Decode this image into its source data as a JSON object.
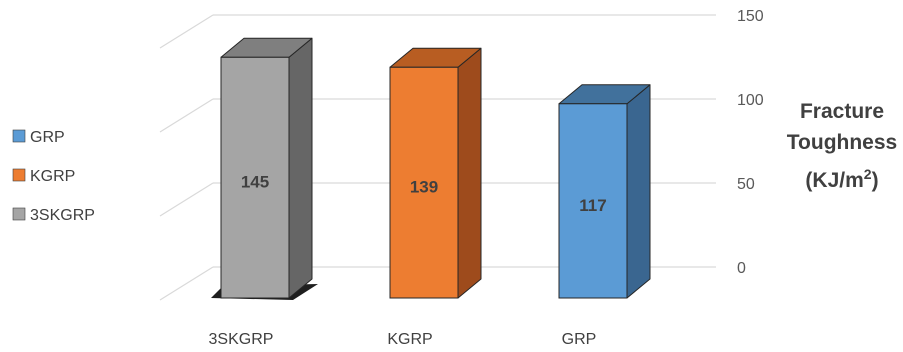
{
  "chart_data": {
    "type": "bar",
    "categories": [
      "3SKGRP",
      "KGRP",
      "GRP"
    ],
    "values": [
      145,
      139,
      117
    ],
    "value_labels": [
      "145",
      "139",
      "117"
    ],
    "ylabel_lines": [
      "Fracture",
      "Toughness",
      "(KJ/m",
      "2",
      ")"
    ],
    "yticks": [
      "0",
      "50",
      "100",
      "150"
    ],
    "ylim": [
      0,
      150
    ],
    "legend": [
      "GRP",
      "KGRP",
      "3SKGRP"
    ],
    "legend_placement": "left",
    "grid": true,
    "three_d": true,
    "colors": {
      "3SKGRP": {
        "front": "#a5a5a5",
        "side": "#666666",
        "top": "#7f7f7f"
      },
      "KGRP": {
        "front": "#ed7d31",
        "side": "#9e4b1c",
        "top": "#b85d22"
      },
      "GRP": {
        "front": "#5b9bd5",
        "side": "#3a6690",
        "top": "#41719c"
      }
    },
    "grid_color": "#d9d9d9"
  }
}
